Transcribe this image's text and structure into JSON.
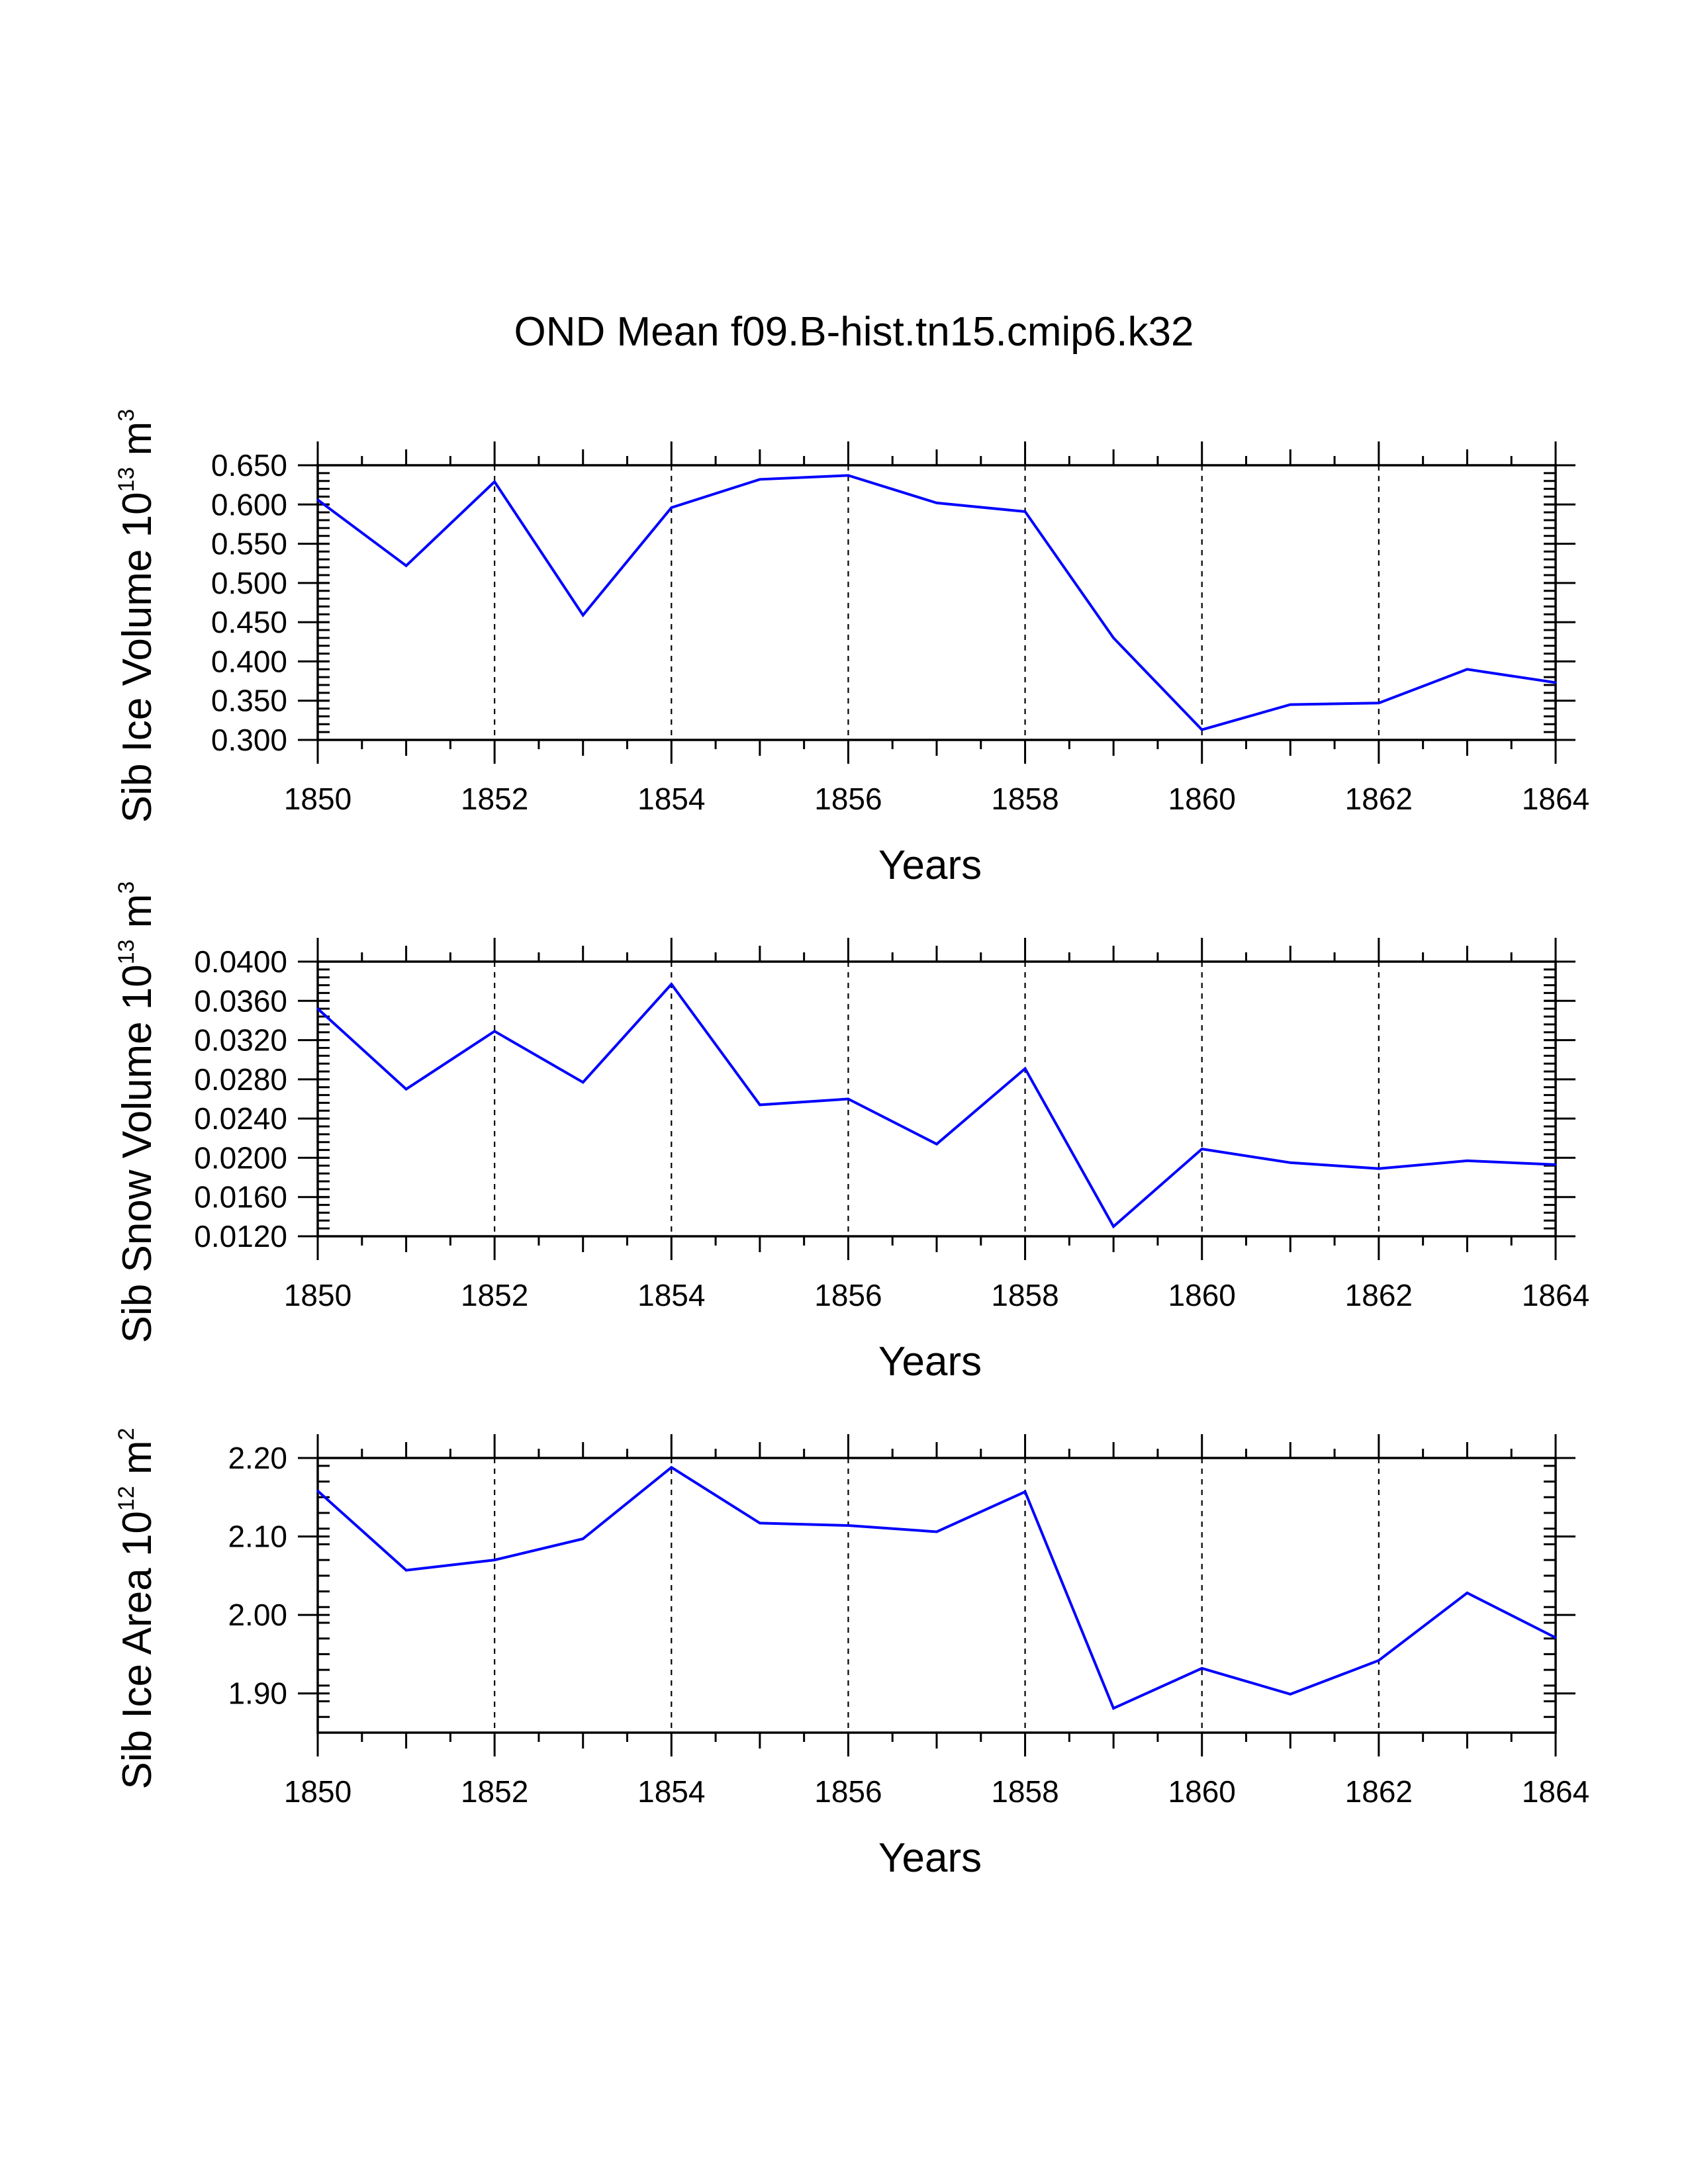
{
  "chart_data": [
    {
      "type": "line",
      "title": "OND Mean f09.B-hist.tn15.cmip6.k32",
      "xlabel": "Years",
      "ylabel": {
        "text": "Sib Ice Volume 10",
        "exp": "13",
        "unit": " m",
        "unit_exp": "3"
      },
      "x": [
        1850,
        1851,
        1852,
        1853,
        1854,
        1855,
        1856,
        1857,
        1858,
        1859,
        1860,
        1861,
        1862,
        1863,
        1864
      ],
      "values": [
        0.606,
        0.522,
        0.629,
        0.459,
        0.596,
        0.632,
        0.637,
        0.602,
        0.591,
        0.43,
        0.313,
        0.345,
        0.347,
        0.39,
        0.373
      ],
      "xlim": [
        1850,
        1864
      ],
      "ylim": [
        0.3,
        0.65
      ],
      "xticks": [
        1850,
        1852,
        1854,
        1856,
        1858,
        1860,
        1862,
        1864
      ],
      "yticks": [
        0.3,
        0.35,
        0.4,
        0.45,
        0.5,
        0.55,
        0.6,
        0.65
      ],
      "ytick_labels": [
        "0.300",
        "0.350",
        "0.400",
        "0.450",
        "0.500",
        "0.550",
        "0.600",
        "0.650"
      ],
      "grid": "vertical dashed at major x ticks",
      "line_color": "#0000ff"
    },
    {
      "type": "line",
      "xlabel": "Years",
      "ylabel": {
        "text": "Sib Snow Volume 10",
        "exp": "13",
        "unit": " m",
        "unit_exp": "3"
      },
      "x": [
        1850,
        1851,
        1852,
        1853,
        1854,
        1855,
        1856,
        1857,
        1858,
        1859,
        1860,
        1861,
        1862,
        1863,
        1864
      ],
      "values": [
        0.0352,
        0.027,
        0.0329,
        0.0277,
        0.0377,
        0.0254,
        0.026,
        0.0214,
        0.0291,
        0.013,
        0.0209,
        0.0195,
        0.0189,
        0.0197,
        0.0193
      ],
      "xlim": [
        1850,
        1864
      ],
      "ylim": [
        0.012,
        0.04
      ],
      "xticks": [
        1850,
        1852,
        1854,
        1856,
        1858,
        1860,
        1862,
        1864
      ],
      "yticks": [
        0.012,
        0.016,
        0.02,
        0.024,
        0.028,
        0.032,
        0.036,
        0.04
      ],
      "ytick_labels": [
        "0.0120",
        "0.0160",
        "0.0200",
        "0.0240",
        "0.0280",
        "0.0320",
        "0.0360",
        "0.0400"
      ],
      "grid": "vertical dashed at major x ticks",
      "line_color": "#0000ff"
    },
    {
      "type": "line",
      "xlabel": "Years",
      "ylabel": {
        "text": "Sib Ice Area 10",
        "exp": "12",
        "unit": " m",
        "unit_exp": "2"
      },
      "x": [
        1850,
        1851,
        1852,
        1853,
        1854,
        1855,
        1856,
        1857,
        1858,
        1859,
        1860,
        1861,
        1862,
        1863,
        1864
      ],
      "values": [
        2.158,
        2.057,
        2.07,
        2.097,
        2.188,
        2.117,
        2.114,
        2.106,
        2.157,
        1.881,
        1.932,
        1.899,
        1.942,
        2.028,
        1.971
      ],
      "xlim": [
        1850,
        1864
      ],
      "ylim": [
        1.85,
        2.2
      ],
      "xticks": [
        1850,
        1852,
        1854,
        1856,
        1858,
        1860,
        1862,
        1864
      ],
      "yticks": [
        1.9,
        2.0,
        2.1,
        2.2
      ],
      "ytick_labels": [
        "1.90",
        "2.00",
        "2.10",
        "2.20"
      ],
      "grid": "vertical dashed at major x ticks",
      "line_color": "#0000ff"
    }
  ]
}
